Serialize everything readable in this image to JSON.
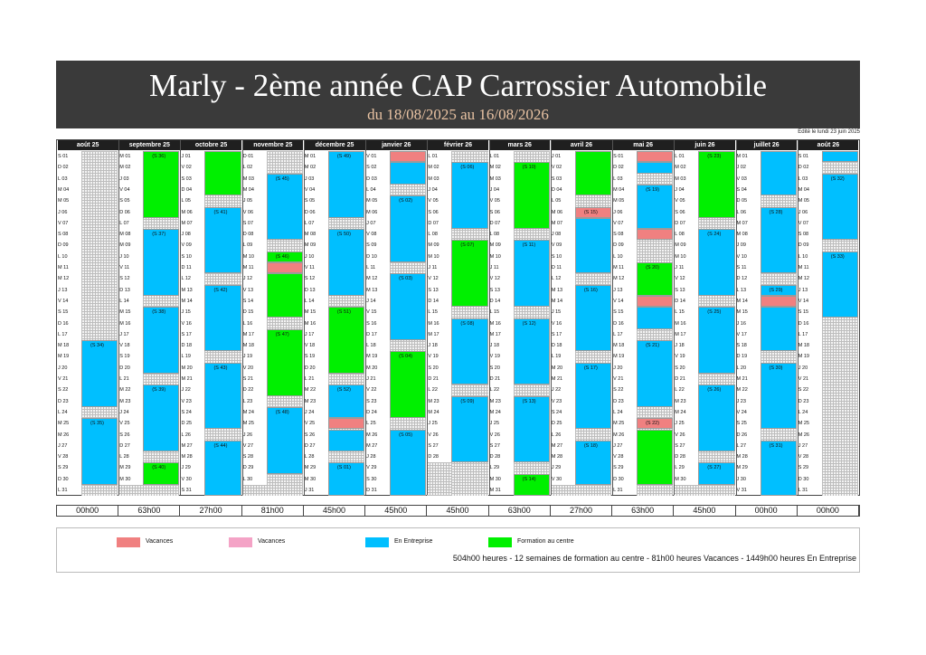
{
  "title": "Marly - 2ème année CAP Carrossier Automobile",
  "subtitle": "du 18/08/2025 au 16/08/2026",
  "edited": "Edité le lundi 23 juin 2025",
  "colors": {
    "entreprise": "#00bfff",
    "centre": "#00f000",
    "vacances": "#f08080",
    "vacances_alt": "#f4a3c6",
    "header": "#1f1f1f",
    "banner": "#3a3a3a"
  },
  "months": [
    {
      "name": "août 25",
      "first_weekday": 5,
      "days": 31,
      "total": "00h00",
      "blocks": [
        {
          "type": "entreprise",
          "start": 18,
          "end": 23,
          "label": "(S 34)"
        },
        {
          "type": "entreprise",
          "start": 25,
          "end": 30,
          "label": "(S 35)"
        }
      ]
    },
    {
      "name": "septembre 25",
      "first_weekday": 1,
      "days": 30,
      "total": "63h00",
      "blocks": [
        {
          "type": "centre",
          "start": 1,
          "end": 6,
          "label": "(S 36)"
        },
        {
          "type": "entreprise",
          "start": 8,
          "end": 13,
          "label": "(S 37)"
        },
        {
          "type": "entreprise",
          "start": 15,
          "end": 20,
          "label": "(S 38)"
        },
        {
          "type": "entreprise",
          "start": 22,
          "end": 27,
          "label": "(S 39)"
        },
        {
          "type": "centre",
          "start": 29,
          "end": 30,
          "label": "(S 40)"
        }
      ]
    },
    {
      "name": "octobre 25",
      "first_weekday": 3,
      "days": 31,
      "total": "27h00",
      "blocks": [
        {
          "type": "centre",
          "start": 1,
          "end": 4,
          "label": ""
        },
        {
          "type": "entreprise",
          "start": 6,
          "end": 11,
          "label": "(S 41)"
        },
        {
          "type": "entreprise",
          "start": 13,
          "end": 18,
          "label": "(S 42)"
        },
        {
          "type": "entreprise",
          "start": 20,
          "end": 25,
          "label": "(S 43)"
        },
        {
          "type": "entreprise",
          "start": 27,
          "end": 31,
          "label": "(S 44)"
        }
      ]
    },
    {
      "name": "novembre 25",
      "first_weekday": 6,
      "days": 30,
      "total": "81h00",
      "blocks": [
        {
          "type": "entreprise",
          "start": 3,
          "end": 8,
          "label": "(S 45)"
        },
        {
          "type": "centre",
          "start": 10,
          "end": 10,
          "label": "(S 46)"
        },
        {
          "type": "vacances",
          "start": 11,
          "end": 11,
          "label": ""
        },
        {
          "type": "centre",
          "start": 12,
          "end": 15,
          "label": ""
        },
        {
          "type": "centre",
          "start": 17,
          "end": 22,
          "label": "(S 47)"
        },
        {
          "type": "entreprise",
          "start": 24,
          "end": 29,
          "label": "(S 48)"
        }
      ]
    },
    {
      "name": "décembre 25",
      "first_weekday": 1,
      "days": 31,
      "total": "45h00",
      "blocks": [
        {
          "type": "entreprise",
          "start": 1,
          "end": 6,
          "label": "(S 49)"
        },
        {
          "type": "entreprise",
          "start": 8,
          "end": 13,
          "label": "(S 50)"
        },
        {
          "type": "centre",
          "start": 15,
          "end": 20,
          "label": "(S 51)"
        },
        {
          "type": "entreprise",
          "start": 22,
          "end": 24,
          "label": "(S 52)"
        },
        {
          "type": "vacances",
          "start": 25,
          "end": 25,
          "label": ""
        },
        {
          "type": "entreprise",
          "start": 26,
          "end": 27,
          "label": ""
        },
        {
          "type": "entreprise",
          "start": 29,
          "end": 31,
          "label": "(S 01)"
        }
      ]
    },
    {
      "name": "janvier 26",
      "first_weekday": 4,
      "days": 31,
      "total": "45h00",
      "blocks": [
        {
          "type": "vacances",
          "start": 1,
          "end": 1,
          "label": ""
        },
        {
          "type": "entreprise",
          "start": 2,
          "end": 3,
          "label": ""
        },
        {
          "type": "entreprise",
          "start": 5,
          "end": 10,
          "label": "(S 02)"
        },
        {
          "type": "entreprise",
          "start": 12,
          "end": 17,
          "label": "(S 03)"
        },
        {
          "type": "centre",
          "start": 19,
          "end": 24,
          "label": "(S 04)"
        },
        {
          "type": "entreprise",
          "start": 26,
          "end": 31,
          "label": "(S 05)"
        }
      ]
    },
    {
      "name": "février 26",
      "first_weekday": 0,
      "days": 28,
      "total": "45h00",
      "blocks": [
        {
          "type": "entreprise",
          "start": 2,
          "end": 7,
          "label": "(S 06)"
        },
        {
          "type": "centre",
          "start": 9,
          "end": 14,
          "label": "(S 07)"
        },
        {
          "type": "entreprise",
          "start": 16,
          "end": 21,
          "label": "(S 08)"
        },
        {
          "type": "entreprise",
          "start": 23,
          "end": 28,
          "label": "(S 09)"
        }
      ]
    },
    {
      "name": "mars 26",
      "first_weekday": 0,
      "days": 31,
      "total": "63h00",
      "blocks": [
        {
          "type": "centre",
          "start": 2,
          "end": 7,
          "label": "(S 10)"
        },
        {
          "type": "entreprise",
          "start": 9,
          "end": 14,
          "label": "(S 11)"
        },
        {
          "type": "entreprise",
          "start": 16,
          "end": 21,
          "label": "(S 12)"
        },
        {
          "type": "entreprise",
          "start": 23,
          "end": 28,
          "label": "(S 13)"
        },
        {
          "type": "centre",
          "start": 30,
          "end": 31,
          "label": "(S 14)"
        }
      ]
    },
    {
      "name": "avril 26",
      "first_weekday": 3,
      "days": 30,
      "total": "27h00",
      "blocks": [
        {
          "type": "centre",
          "start": 1,
          "end": 4,
          "label": ""
        },
        {
          "type": "vacances",
          "start": 6,
          "end": 6,
          "label": "(S 15)"
        },
        {
          "type": "entreprise",
          "start": 7,
          "end": 11,
          "label": ""
        },
        {
          "type": "entreprise",
          "start": 13,
          "end": 18,
          "label": "(S 16)"
        },
        {
          "type": "entreprise",
          "start": 20,
          "end": 25,
          "label": "(S 17)"
        },
        {
          "type": "entreprise",
          "start": 27,
          "end": 30,
          "label": "(S 18)"
        }
      ]
    },
    {
      "name": "mai 26",
      "first_weekday": 5,
      "days": 31,
      "total": "63h00",
      "blocks": [
        {
          "type": "vacances",
          "start": 1,
          "end": 1,
          "label": ""
        },
        {
          "type": "entreprise",
          "start": 2,
          "end": 2,
          "label": ""
        },
        {
          "type": "entreprise",
          "start": 4,
          "end": 7,
          "label": "(S 19)"
        },
        {
          "type": "vacances",
          "start": 8,
          "end": 8,
          "label": ""
        },
        {
          "type": "centre",
          "start": 11,
          "end": 13,
          "label": "(S 20)"
        },
        {
          "type": "vacances",
          "start": 14,
          "end": 14,
          "label": ""
        },
        {
          "type": "entreprise",
          "start": 15,
          "end": 16,
          "label": ""
        },
        {
          "type": "entreprise",
          "start": 18,
          "end": 23,
          "label": "(S 21)"
        },
        {
          "type": "vacances",
          "start": 25,
          "end": 25,
          "label": "(S 22)"
        },
        {
          "type": "centre",
          "start": 26,
          "end": 30,
          "label": ""
        }
      ]
    },
    {
      "name": "juin 26",
      "first_weekday": 0,
      "days": 30,
      "total": "45h00",
      "blocks": [
        {
          "type": "centre",
          "start": 1,
          "end": 6,
          "label": "(S 23)"
        },
        {
          "type": "entreprise",
          "start": 8,
          "end": 13,
          "label": "(S 24)"
        },
        {
          "type": "entreprise",
          "start": 15,
          "end": 20,
          "label": "(S 25)"
        },
        {
          "type": "entreprise",
          "start": 22,
          "end": 27,
          "label": "(S 26)"
        },
        {
          "type": "entreprise",
          "start": 29,
          "end": 30,
          "label": "(S 27)"
        }
      ]
    },
    {
      "name": "juillet 26",
      "first_weekday": 2,
      "days": 31,
      "total": "00h00",
      "blocks": [
        {
          "type": "entreprise",
          "start": 1,
          "end": 4,
          "label": ""
        },
        {
          "type": "entreprise",
          "start": 6,
          "end": 11,
          "label": "(S 28)"
        },
        {
          "type": "entreprise",
          "start": 13,
          "end": 13,
          "label": "(S 29)"
        },
        {
          "type": "vacances",
          "start": 14,
          "end": 14,
          "label": ""
        },
        {
          "type": "entreprise",
          "start": 15,
          "end": 18,
          "label": ""
        },
        {
          "type": "entreprise",
          "start": 20,
          "end": 25,
          "label": "(S 30)"
        },
        {
          "type": "entreprise",
          "start": 27,
          "end": 31,
          "label": "(S 31)"
        }
      ]
    },
    {
      "name": "août 26",
      "first_weekday": 5,
      "days": 31,
      "total": "00h00",
      "blocks": [
        {
          "type": "entreprise",
          "start": 1,
          "end": 1,
          "label": ""
        },
        {
          "type": "entreprise",
          "start": 3,
          "end": 8,
          "label": "(S 32)"
        },
        {
          "type": "entreprise",
          "start": 10,
          "end": 15,
          "label": "(S 33)"
        }
      ]
    }
  ],
  "weekday_letters": [
    "L",
    "M",
    "M",
    "J",
    "V",
    "S",
    "D"
  ],
  "legend": [
    {
      "label": "Vacances",
      "color": "#f08080"
    },
    {
      "label": "Vacances",
      "color": "#f4a3c6"
    },
    {
      "label": "En Entreprise",
      "color": "#00bfff"
    },
    {
      "label": "Formation au centre",
      "color": "#00f000"
    }
  ],
  "summary": "504h00 heures - 12 semaines de formation au centre - 81h00 heures Vacances - 1449h00 heures En Entreprise"
}
